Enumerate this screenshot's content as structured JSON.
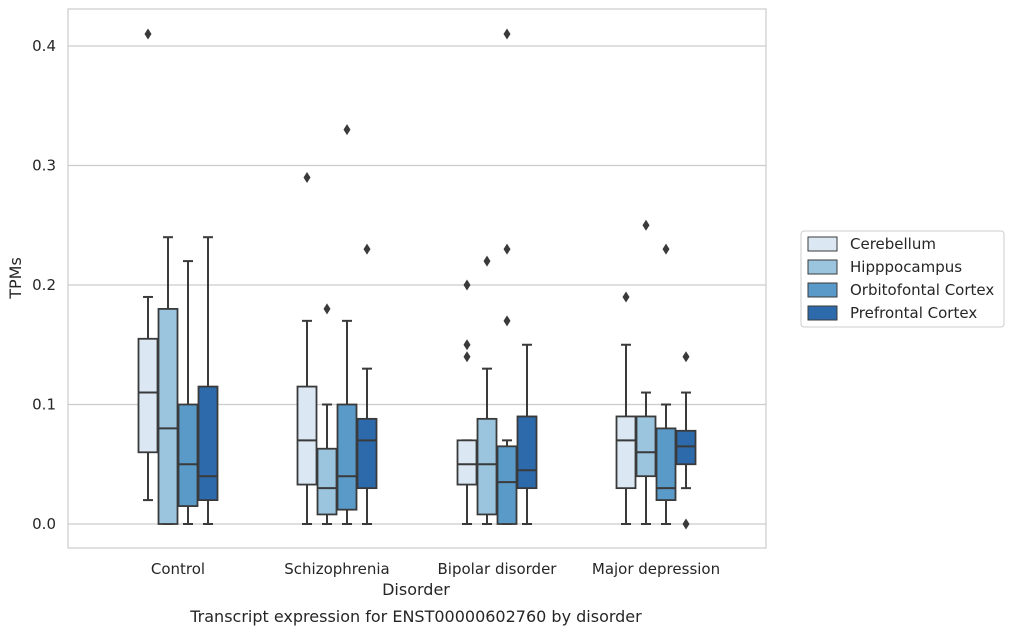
{
  "chart_data": {
    "type": "box",
    "title": "",
    "caption": "Transcript expression for ENST00000602760 by disorder",
    "xlabel": "Disorder",
    "ylabel": "TPMs",
    "ylim": [
      -0.02,
      0.43
    ],
    "yticks": [
      0.0,
      0.1,
      0.2,
      0.3,
      0.4
    ],
    "ytick_labels": [
      "0.0",
      "0.1",
      "0.2",
      "0.3",
      "0.4"
    ],
    "grid": "horizontal",
    "legend_position": "right",
    "categories": [
      "Control",
      "Schizophrenia",
      "Bipolar disorder",
      "Major depression"
    ],
    "series": [
      {
        "name": "Cerebellum",
        "color": "#dbe8f4",
        "boxes": [
          {
            "whisker_low": 0.02,
            "q1": 0.06,
            "median": 0.11,
            "q3": 0.155,
            "whisker_high": 0.19,
            "outliers": [
              0.41
            ]
          },
          {
            "whisker_low": 0.0,
            "q1": 0.033,
            "median": 0.07,
            "q3": 0.115,
            "whisker_high": 0.17,
            "outliers": [
              0.29
            ]
          },
          {
            "whisker_low": 0.0,
            "q1": 0.033,
            "median": 0.05,
            "q3": 0.07,
            "whisker_high": 0.07,
            "outliers": [
              0.2,
              0.15,
              0.14
            ]
          },
          {
            "whisker_low": 0.0,
            "q1": 0.03,
            "median": 0.07,
            "q3": 0.09,
            "whisker_high": 0.15,
            "outliers": [
              0.19
            ]
          }
        ]
      },
      {
        "name": "Hipppocampus",
        "color": "#9bc5df",
        "boxes": [
          {
            "whisker_low": 0.0,
            "q1": 0.0,
            "median": 0.08,
            "q3": 0.18,
            "whisker_high": 0.24,
            "outliers": []
          },
          {
            "whisker_low": 0.0,
            "q1": 0.008,
            "median": 0.03,
            "q3": 0.063,
            "whisker_high": 0.1,
            "outliers": [
              0.18
            ]
          },
          {
            "whisker_low": 0.0,
            "q1": 0.008,
            "median": 0.05,
            "q3": 0.088,
            "whisker_high": 0.13,
            "outliers": [
              0.22
            ]
          },
          {
            "whisker_low": 0.0,
            "q1": 0.04,
            "median": 0.06,
            "q3": 0.09,
            "whisker_high": 0.11,
            "outliers": [
              0.25
            ]
          }
        ]
      },
      {
        "name": "Orbitofontal Cortex",
        "color": "#5a9ac8",
        "boxes": [
          {
            "whisker_low": 0.0,
            "q1": 0.015,
            "median": 0.05,
            "q3": 0.1,
            "whisker_high": 0.22,
            "outliers": []
          },
          {
            "whisker_low": 0.0,
            "q1": 0.012,
            "median": 0.04,
            "q3": 0.1,
            "whisker_high": 0.17,
            "outliers": [
              0.33
            ]
          },
          {
            "whisker_low": 0.0,
            "q1": 0.0,
            "median": 0.035,
            "q3": 0.065,
            "whisker_high": 0.07,
            "outliers": [
              0.41,
              0.23,
              0.17
            ]
          },
          {
            "whisker_low": 0.0,
            "q1": 0.02,
            "median": 0.03,
            "q3": 0.08,
            "whisker_high": 0.1,
            "outliers": [
              0.23
            ]
          }
        ]
      },
      {
        "name": "Prefrontal Cortex",
        "color": "#2d6aab",
        "boxes": [
          {
            "whisker_low": 0.0,
            "q1": 0.02,
            "median": 0.04,
            "q3": 0.115,
            "whisker_high": 0.24,
            "outliers": []
          },
          {
            "whisker_low": 0.0,
            "q1": 0.03,
            "median": 0.07,
            "q3": 0.088,
            "whisker_high": 0.13,
            "outliers": [
              0.23
            ]
          },
          {
            "whisker_low": 0.0,
            "q1": 0.03,
            "median": 0.045,
            "q3": 0.09,
            "whisker_high": 0.15,
            "outliers": []
          },
          {
            "whisker_low": 0.03,
            "q1": 0.05,
            "median": 0.065,
            "q3": 0.078,
            "whisker_high": 0.11,
            "outliers": [
              0.14,
              0.0
            ]
          }
        ]
      }
    ]
  }
}
